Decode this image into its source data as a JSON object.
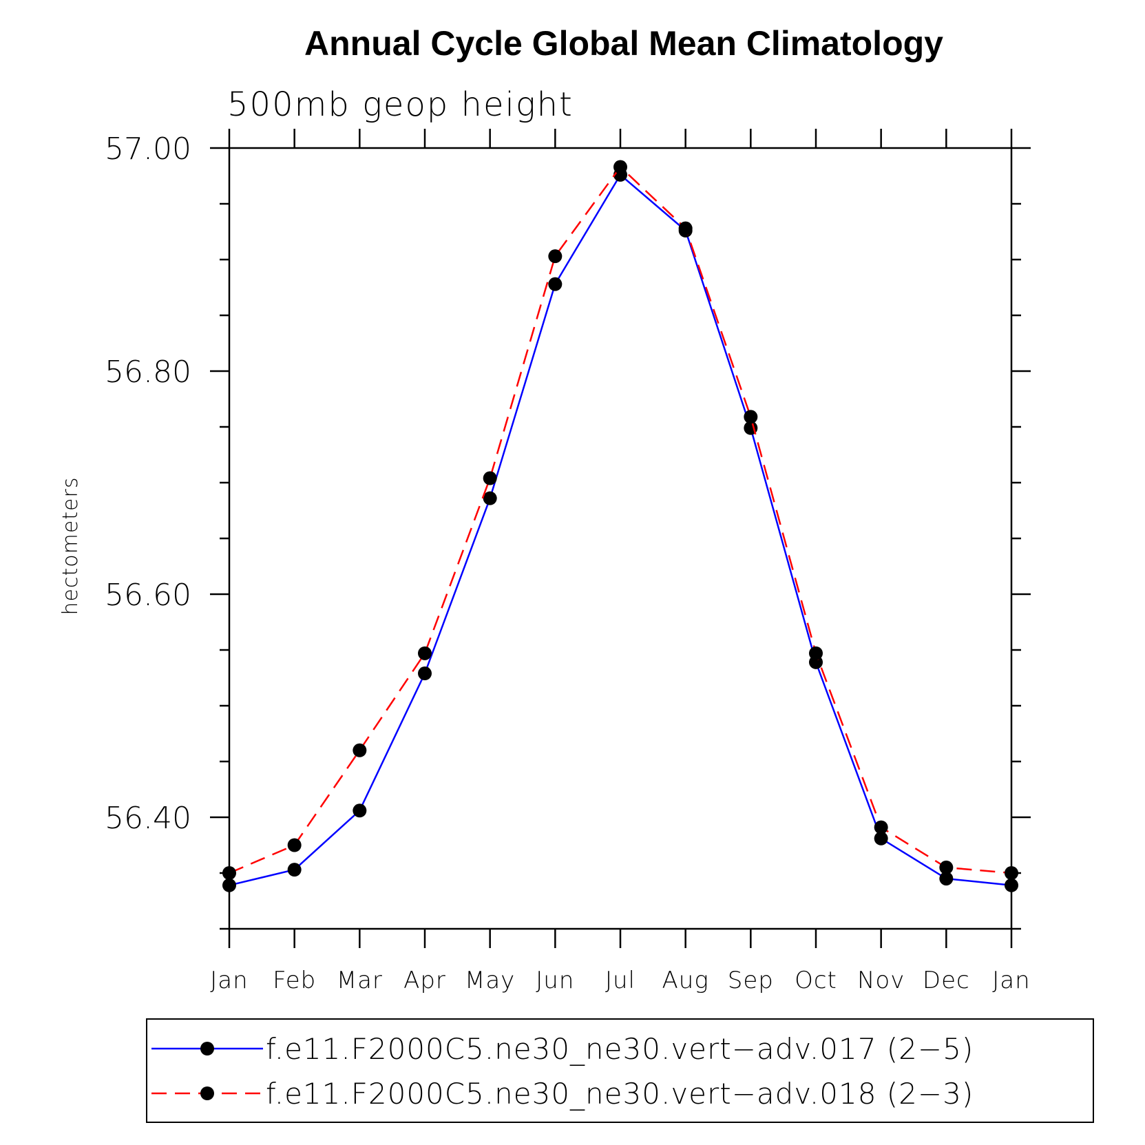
{
  "chart_data": {
    "type": "line",
    "title": "Annual Cycle Global Mean Climatology",
    "subtitle": "500mb geop height",
    "ylabel": "hectometers",
    "xlabel": "",
    "categories": [
      "Jan",
      "Feb",
      "Mar",
      "Apr",
      "May",
      "Jun",
      "Jul",
      "Aug",
      "Sep",
      "Oct",
      "Nov",
      "Dec",
      "Jan"
    ],
    "y_ticks": [
      "57.00",
      "56.80",
      "56.60",
      "56.40"
    ],
    "y_tick_values": [
      57.0,
      56.8,
      56.6,
      56.4
    ],
    "ylim": [
      56.3,
      57.0
    ],
    "grid": false,
    "legend_position": "bottom",
    "series": [
      {
        "name": "f.e11.F2000C5.ne30_ne30.vert−adv.017 (2−5)",
        "color": "#0000ff",
        "line_style": "solid",
        "marker": "filled-circle",
        "values": [
          56.339,
          56.353,
          56.406,
          56.529,
          56.686,
          56.878,
          56.976,
          56.926,
          56.749,
          56.539,
          56.381,
          56.345,
          56.339
        ]
      },
      {
        "name": "f.e11.F2000C5.ne30_ne30.vert−adv.018 (2−3)",
        "color": "#ff0000",
        "line_style": "dashed",
        "marker": "filled-circle",
        "values": [
          56.35,
          56.375,
          56.46,
          56.547,
          56.704,
          56.903,
          56.983,
          56.928,
          56.759,
          56.547,
          56.391,
          56.355,
          56.35
        ]
      }
    ]
  }
}
